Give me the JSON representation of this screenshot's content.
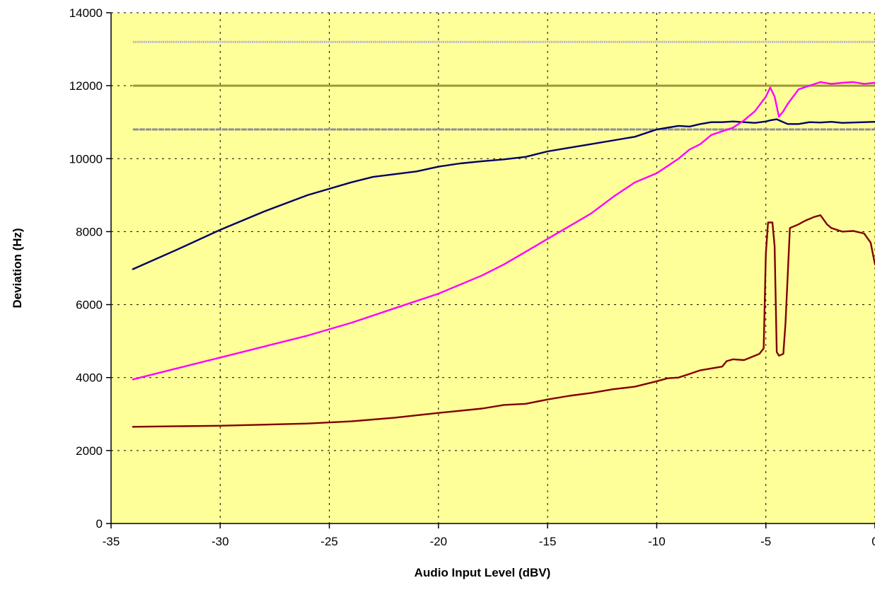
{
  "chart_data": {
    "type": "line",
    "title": "",
    "xlabel": "Audio Input Level (dBV)",
    "ylabel": "Deviation (Hz)",
    "xlim": [
      -35,
      0
    ],
    "ylim": [
      0,
      14000
    ],
    "x_ticks": [
      -35,
      -30,
      -25,
      -20,
      -15,
      -10,
      -5,
      0
    ],
    "x_tick_labels": [
      "-35",
      "-30",
      "-25",
      "-20",
      "-15",
      "-10",
      "-5",
      "0"
    ],
    "y_ticks": [
      0,
      2000,
      4000,
      6000,
      8000,
      10000,
      12000,
      14000
    ],
    "y_tick_labels": [
      "0",
      "2000",
      "4000",
      "6000",
      "8000",
      "10000",
      "12000",
      "14000"
    ],
    "grid": true,
    "legend": "none",
    "plot_background": "#ffff99",
    "reference_lines": [
      {
        "y": 13200,
        "color": "#b4b4c8",
        "style": "dotted"
      },
      {
        "y": 12000,
        "color": "#99993a",
        "style": "solid"
      },
      {
        "y": 10800,
        "color": "#8c8c9c",
        "style": "dashed"
      }
    ],
    "series": [
      {
        "color": "#000066",
        "points": [
          [
            -34,
            6970
          ],
          [
            -32,
            7500
          ],
          [
            -30,
            8050
          ],
          [
            -28,
            8550
          ],
          [
            -26,
            9000
          ],
          [
            -24,
            9350
          ],
          [
            -23,
            9500
          ],
          [
            -21,
            9650
          ],
          [
            -20,
            9780
          ],
          [
            -19,
            9870
          ],
          [
            -18,
            9930
          ],
          [
            -17,
            9980
          ],
          [
            -16,
            10050
          ],
          [
            -15,
            10200
          ],
          [
            -14,
            10300
          ],
          [
            -13,
            10400
          ],
          [
            -12,
            10500
          ],
          [
            -11,
            10600
          ],
          [
            -10,
            10800
          ],
          [
            -9.5,
            10850
          ],
          [
            -9,
            10900
          ],
          [
            -8.5,
            10880
          ],
          [
            -8,
            10950
          ],
          [
            -7.5,
            11000
          ],
          [
            -7,
            11000
          ],
          [
            -6.5,
            11020
          ],
          [
            -6,
            11000
          ],
          [
            -5.5,
            10980
          ],
          [
            -5,
            11020
          ],
          [
            -4.8,
            11050
          ],
          [
            -4.5,
            11080
          ],
          [
            -4.2,
            11000
          ],
          [
            -4,
            10950
          ],
          [
            -3.5,
            10950
          ],
          [
            -3,
            11000
          ],
          [
            -2.5,
            10990
          ],
          [
            -2,
            11010
          ],
          [
            -1.5,
            10980
          ],
          [
            -1,
            10990
          ],
          [
            -0.5,
            11000
          ],
          [
            0,
            11010
          ]
        ]
      },
      {
        "color": "#ff00ff",
        "points": [
          [
            -34,
            3950
          ],
          [
            -32,
            4250
          ],
          [
            -30,
            4550
          ],
          [
            -28,
            4850
          ],
          [
            -26,
            5150
          ],
          [
            -24,
            5500
          ],
          [
            -22,
            5900
          ],
          [
            -20,
            6300
          ],
          [
            -18,
            6800
          ],
          [
            -17,
            7100
          ],
          [
            -16,
            7450
          ],
          [
            -15,
            7800
          ],
          [
            -14,
            8150
          ],
          [
            -13,
            8500
          ],
          [
            -12,
            8950
          ],
          [
            -11,
            9350
          ],
          [
            -10,
            9600
          ],
          [
            -9.5,
            9800
          ],
          [
            -9,
            10000
          ],
          [
            -8.5,
            10250
          ],
          [
            -8,
            10400
          ],
          [
            -7.5,
            10650
          ],
          [
            -7,
            10750
          ],
          [
            -6.5,
            10850
          ],
          [
            -6,
            11050
          ],
          [
            -5.5,
            11300
          ],
          [
            -5,
            11700
          ],
          [
            -4.8,
            11950
          ],
          [
            -4.6,
            11700
          ],
          [
            -4.4,
            11150
          ],
          [
            -4.2,
            11300
          ],
          [
            -4,
            11500
          ],
          [
            -3.5,
            11900
          ],
          [
            -3,
            12000
          ],
          [
            -2.5,
            12100
          ],
          [
            -2,
            12050
          ],
          [
            -1.5,
            12080
          ],
          [
            -1,
            12100
          ],
          [
            -0.5,
            12050
          ],
          [
            0,
            12080
          ]
        ]
      },
      {
        "color": "#800000",
        "points": [
          [
            -34,
            2650
          ],
          [
            -30,
            2680
          ],
          [
            -26,
            2740
          ],
          [
            -24,
            2800
          ],
          [
            -22,
            2900
          ],
          [
            -20,
            3030
          ],
          [
            -18,
            3150
          ],
          [
            -17,
            3250
          ],
          [
            -16,
            3280
          ],
          [
            -15,
            3400
          ],
          [
            -14,
            3500
          ],
          [
            -13,
            3580
          ],
          [
            -12,
            3680
          ],
          [
            -11,
            3750
          ],
          [
            -10,
            3900
          ],
          [
            -9.5,
            3980
          ],
          [
            -9,
            4000
          ],
          [
            -8.5,
            4100
          ],
          [
            -8,
            4200
          ],
          [
            -7.5,
            4250
          ],
          [
            -7,
            4300
          ],
          [
            -6.8,
            4450
          ],
          [
            -6.5,
            4500
          ],
          [
            -6,
            4480
          ],
          [
            -5.5,
            4600
          ],
          [
            -5.3,
            4650
          ],
          [
            -5.1,
            4800
          ],
          [
            -5,
            7400
          ],
          [
            -4.9,
            8250
          ],
          [
            -4.7,
            8250
          ],
          [
            -4.6,
            7600
          ],
          [
            -4.5,
            4700
          ],
          [
            -4.4,
            4600
          ],
          [
            -4.2,
            4650
          ],
          [
            -4.1,
            5500
          ],
          [
            -3.9,
            8100
          ],
          [
            -3.5,
            8200
          ],
          [
            -3.2,
            8300
          ],
          [
            -2.8,
            8400
          ],
          [
            -2.5,
            8450
          ],
          [
            -2.2,
            8200
          ],
          [
            -2,
            8100
          ],
          [
            -1.5,
            8000
          ],
          [
            -1,
            8020
          ],
          [
            -0.5,
            7950
          ],
          [
            -0.2,
            7700
          ],
          [
            0,
            7100
          ]
        ]
      }
    ]
  }
}
